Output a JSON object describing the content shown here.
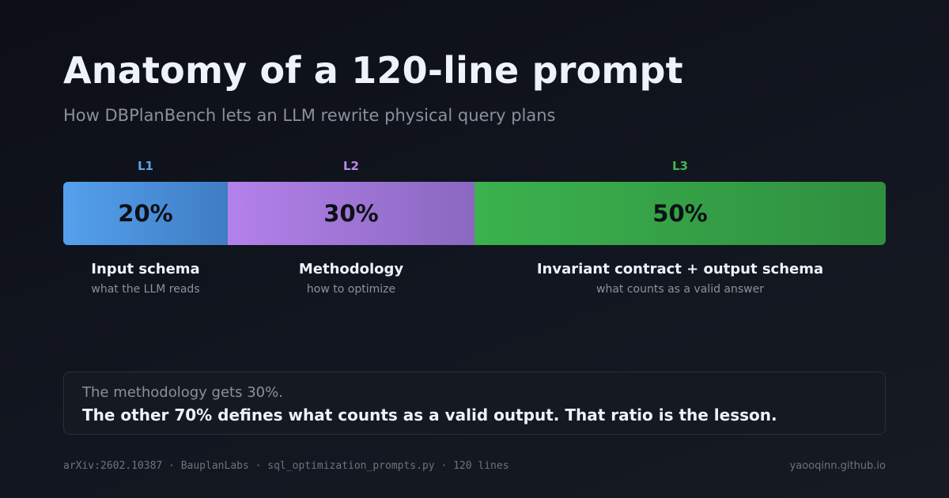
{
  "header": {
    "title": "Anatomy of a 120-line prompt",
    "subtitle": "How DBPlanBench lets an LLM rewrite physical query plans"
  },
  "segments": [
    {
      "tag": "L1",
      "share": 0.2,
      "percent_label": "20%",
      "label": "Input schema",
      "description": "what the LLM reads",
      "tag_color": "#5aa4ee",
      "gradient": [
        "#55a0ec",
        "#3f7dc4"
      ]
    },
    {
      "tag": "L2",
      "share": 0.3,
      "percent_label": "30%",
      "label": "Methodology",
      "description": "how to optimize",
      "tag_color": "#b98bf0",
      "gradient": [
        "#b381ea",
        "#8a68c0"
      ]
    },
    {
      "tag": "L3",
      "share": 0.5,
      "percent_label": "50%",
      "label": "Invariant contract + output schema",
      "description": "what counts as a valid answer",
      "tag_color": "#3fb950",
      "gradient": [
        "#3bb24d",
        "#2f8f40"
      ]
    }
  ],
  "callout": {
    "line1": "The methodology gets 30%.",
    "line2": "The other 70% defines what counts as a valid output. That ratio is the lesson."
  },
  "footer": {
    "left": "arXiv:2602.10387 · BauplanLabs · sql_optimization_prompts.py · 120 lines",
    "right": "yaooqinn.github.io"
  }
}
